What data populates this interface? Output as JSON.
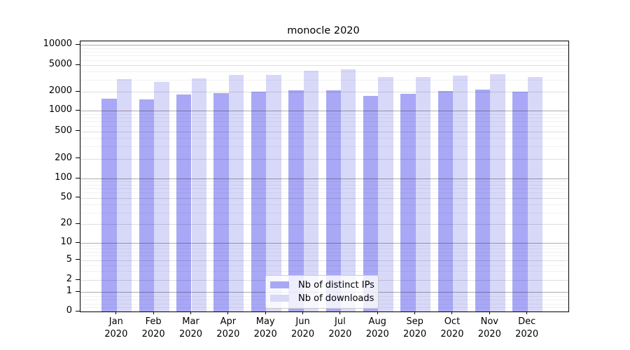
{
  "chart": {
    "title": "monocle 2020",
    "colors": {
      "distinct_ips": "#a8a8f6",
      "downloads": "#d8d8f9",
      "grid_decade": "rgba(0,0,0,0.32)",
      "grid_labeled": "rgba(0,0,0,0.13)",
      "grid_minor": "rgba(0,0,0,0.055)"
    }
  },
  "legend": {
    "items": [
      {
        "label": "Nb of distinct IPs",
        "series": "distinct_ips"
      },
      {
        "label": "Nb of downloads",
        "series": "downloads"
      }
    ]
  },
  "chart_data": {
    "type": "bar",
    "title": "monocle 2020",
    "categories": [
      "Jan 2020",
      "Feb 2020",
      "Mar 2020",
      "Apr 2020",
      "May 2020",
      "Jun 2020",
      "Jul 2020",
      "Aug 2020",
      "Sep 2020",
      "Oct 2020",
      "Nov 2020",
      "Dec 2020"
    ],
    "series": [
      {
        "name": "Nb of distinct IPs",
        "color_key": "distinct_ips",
        "values": [
          1570,
          1530,
          1800,
          1900,
          2000,
          2100,
          2100,
          1700,
          1840,
          2060,
          2130,
          1990
        ]
      },
      {
        "name": "Nb of downloads",
        "color_key": "downloads",
        "values": [
          3100,
          2820,
          3150,
          3600,
          3600,
          4100,
          4400,
          3300,
          3340,
          3540,
          3680,
          3370
        ]
      }
    ],
    "xlabel": "",
    "ylabel": "",
    "yscale": "asinh (symlog-like)",
    "ylim": [
      0,
      10000
    ],
    "y_ticks": [
      0,
      1,
      2,
      5,
      10,
      20,
      50,
      100,
      200,
      500,
      1000,
      2000,
      5000,
      10000
    ],
    "grid": "both (major and minor horizontal gridlines)",
    "legend_position": "lower center inside plot"
  }
}
